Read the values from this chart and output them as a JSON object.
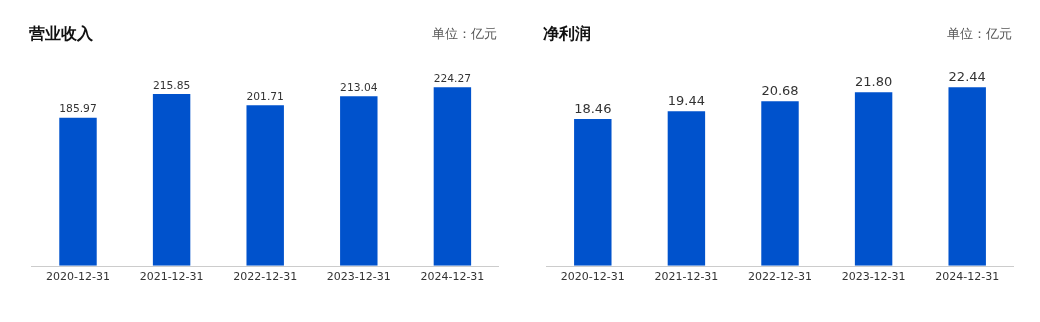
{
  "chart_data": [
    {
      "type": "bar",
      "title": "营业收入",
      "annotations": [
        "单位：亿元"
      ],
      "categories": [
        "2020-12-31",
        "2021-12-31",
        "2022-12-31",
        "2023-12-31",
        "2024-12-31"
      ],
      "relative": false,
      "color": "#0052cc",
      "values": [
        185.97,
        215.85,
        201.71,
        213.04,
        224.27
      ],
      "value_labels": [
        "185.97",
        "215.85",
        "201.71",
        "213.04",
        "224.27"
      ]
    },
    {
      "type": "bar",
      "title": "净利润",
      "annotations": [
        "单位：亿元"
      ],
      "categories": [
        "2020-12-31",
        "2021-12-31",
        "2022-12-31",
        "2023-12-31",
        "2024-12-31"
      ],
      "relative": false,
      "color": "#0052cc",
      "values": [
        18.46,
        19.44,
        20.68,
        21.8,
        22.44
      ],
      "value_labels": [
        "18.46",
        "19.44",
        "20.68",
        "21.80",
        "22.44"
      ]
    }
  ]
}
